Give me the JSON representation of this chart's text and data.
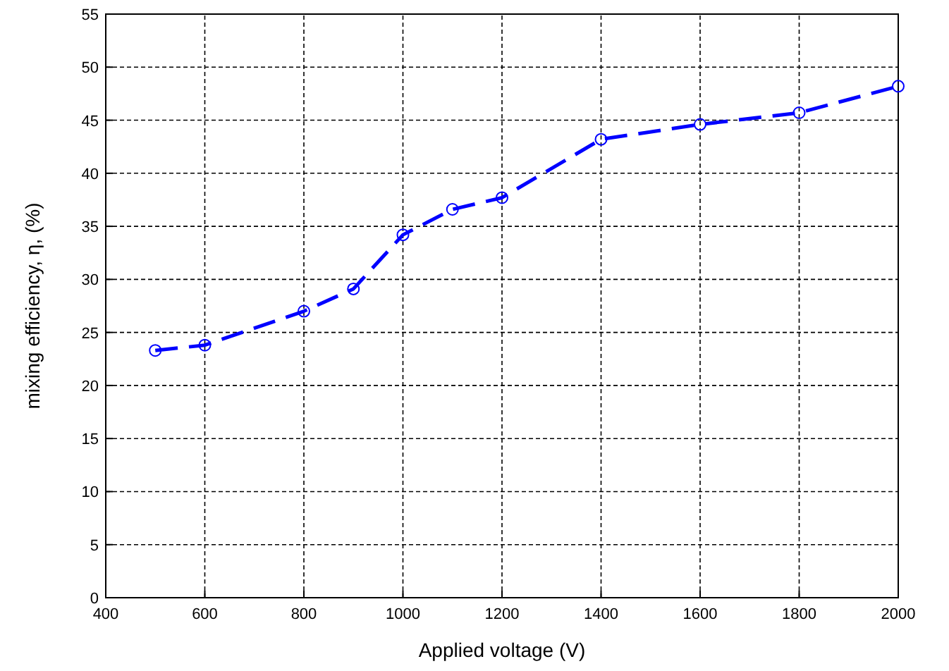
{
  "chart_data": {
    "type": "line",
    "xlabel": "Applied voltage (V)",
    "ylabel": "mixing efficiency, η, (%)",
    "x": [
      500,
      600,
      800,
      900,
      1000,
      1100,
      1200,
      1400,
      1600,
      1800,
      2000
    ],
    "series": [
      {
        "color": "#0000ff",
        "values": [
          23.3,
          23.8,
          27.0,
          29.1,
          34.2,
          36.6,
          37.7,
          43.2,
          44.6,
          45.7,
          48.2
        ]
      }
    ],
    "xlim": [
      400,
      2000
    ],
    "xticks": [
      400,
      600,
      800,
      1000,
      1200,
      1400,
      1600,
      1800,
      2000
    ],
    "ylim": [
      0,
      55
    ],
    "yticks": [
      0,
      5,
      10,
      15,
      20,
      25,
      30,
      35,
      40,
      45,
      50,
      55
    ],
    "grid": true,
    "marker": "circle",
    "line_style": "dashed"
  }
}
